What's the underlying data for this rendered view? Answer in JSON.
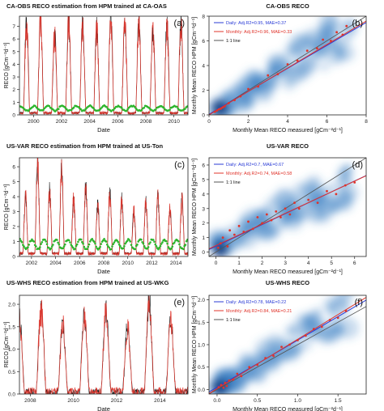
{
  "colors": {
    "measured": "#1a1a1a",
    "model": "#e0342b",
    "green": "#2db52d",
    "daily_line": "#2a3bd6",
    "monthly_line": "#e0342b",
    "one_to_one": "#555555",
    "density": "#3a7cc2"
  },
  "panels": [
    {
      "title": "CA-OBS RECO estimation from HPM trained at CA-OAS",
      "letter": "(a)",
      "xlabel": "Date",
      "ylabel": "RECO",
      "yunit": "[gCm⁻²d⁻¹]",
      "xticks": [
        "2000",
        "2002",
        "2004",
        "2006",
        "2008",
        "2010"
      ],
      "yticks": [
        "0",
        "1",
        "2",
        "3",
        "4",
        "5",
        "6",
        "7"
      ],
      "chart_data": {
        "type": "line",
        "x": [
          1999.0,
          2011.0
        ],
        "xlim": [
          1999.0,
          2011.0
        ],
        "ylim": [
          0,
          7.8
        ],
        "seasonal": {
          "start_year": 1999,
          "end_year": 2011,
          "peaks": [
            7.2,
            7.4,
            6.2,
            7.4,
            7.0,
            6.6,
            7.6,
            7.2,
            7.2,
            6.4,
            6.8,
            7.0
          ],
          "base": 0.15,
          "green_peak": 1.1
        },
        "series": []
      }
    },
    {
      "title": "CA-OBS RECO",
      "letter": "(b)",
      "xlabel": "Monthly Mean RECO measured",
      "ylabel": "Monthly Mean RECO HPM",
      "unit": "[gCm⁻²d⁻¹]",
      "xticks": [
        "0",
        "2",
        "4",
        "6",
        "8"
      ],
      "yticks": [
        "0",
        "2",
        "4",
        "6",
        "8"
      ],
      "legend": [
        "Daily: Adj.R2=0.95, MAE=0.37",
        "Monthly: Adj.R2=0.96, MAE=0.33",
        "1:1 line"
      ],
      "chart_data": {
        "type": "scatter",
        "xlim": [
          0,
          8
        ],
        "ylim": [
          0,
          8
        ],
        "daily_fit": [
          0.05,
          0.93
        ],
        "monthly_fit": [
          0.0,
          0.95
        ],
        "points": [
          [
            0.3,
            0.25
          ],
          [
            0.4,
            0.35
          ],
          [
            0.5,
            0.45
          ],
          [
            0.6,
            0.5
          ],
          [
            0.7,
            0.6
          ],
          [
            0.8,
            0.7
          ],
          [
            1.0,
            0.95
          ],
          [
            1.3,
            1.2
          ],
          [
            1.6,
            1.5
          ],
          [
            2.0,
            2.1
          ],
          [
            2.5,
            2.3
          ],
          [
            3.0,
            3.2
          ],
          [
            3.5,
            3.3
          ],
          [
            4.0,
            4.1
          ],
          [
            4.5,
            4.4
          ],
          [
            5.0,
            5.2
          ],
          [
            5.5,
            5.4
          ],
          [
            5.8,
            6.1
          ],
          [
            6.2,
            6.0
          ],
          [
            6.5,
            6.7
          ],
          [
            6.8,
            6.5
          ],
          [
            7.0,
            7.2
          ]
        ]
      }
    },
    {
      "title": "US-VAR RECO estimation from HPM trained at US-Ton",
      "letter": "(c)",
      "xlabel": "Date",
      "ylabel": "RECO",
      "yunit": "[gCm⁻²d⁻¹]",
      "xticks": [
        "2002",
        "2004",
        "2006",
        "2008",
        "2010",
        "2012",
        "2014"
      ],
      "yticks": [
        "0",
        "1",
        "2",
        "3",
        "4",
        "5",
        "6"
      ],
      "chart_data": {
        "type": "line",
        "xlim": [
          2001.0,
          2015.0
        ],
        "ylim": [
          0,
          6.6
        ],
        "seasonal": {
          "start_year": 2001,
          "end_year": 2015,
          "peaks": [
            3.8,
            6.2,
            4.2,
            5.8,
            3.6,
            4.4,
            3.2,
            4.0,
            3.6,
            2.8,
            3.4,
            3.8,
            3.0,
            3.6
          ],
          "base": 0.2,
          "green_peak": 1.8
        },
        "series": []
      }
    },
    {
      "title": "US-VAR RECO",
      "letter": "(d)",
      "xlabel": "Monthly Mean RECO measured",
      "ylabel": "Monthly Mean RECO HPM",
      "unit": "[gCm⁻²d⁻¹]",
      "xticks": [
        "0",
        "1",
        "2",
        "3",
        "4",
        "5",
        "6"
      ],
      "yticks": [
        "0",
        "1",
        "2",
        "3",
        "4",
        "5",
        "6"
      ],
      "legend": [
        "Daily: Adj.R2=0.7, MAE=0.67",
        "Monthly: Adj.R2=0.74, MAE=0.58",
        "1:1 line"
      ],
      "chart_data": {
        "type": "scatter",
        "xlim": [
          -0.3,
          6.5
        ],
        "ylim": [
          -0.3,
          6.5
        ],
        "daily_fit": [
          0.4,
          0.75
        ],
        "monthly_fit": [
          0.45,
          0.74
        ],
        "points": [
          [
            0.1,
            0.3
          ],
          [
            0.2,
            0.6
          ],
          [
            0.3,
            1.0
          ],
          [
            0.5,
            0.4
          ],
          [
            0.6,
            1.5
          ],
          [
            0.8,
            1.2
          ],
          [
            1.0,
            1.8
          ],
          [
            1.2,
            1.4
          ],
          [
            1.4,
            2.1
          ],
          [
            1.6,
            1.6
          ],
          [
            1.8,
            2.4
          ],
          [
            2.0,
            2.0
          ],
          [
            2.2,
            2.6
          ],
          [
            2.4,
            2.2
          ],
          [
            2.6,
            2.8
          ],
          [
            2.8,
            2.4
          ],
          [
            3.0,
            3.0
          ],
          [
            3.2,
            2.6
          ],
          [
            3.4,
            3.4
          ],
          [
            3.6,
            3.0
          ],
          [
            4.0,
            3.6
          ],
          [
            4.4,
            3.4
          ],
          [
            4.8,
            4.2
          ],
          [
            5.2,
            4.0
          ],
          [
            5.6,
            4.6
          ],
          [
            6.0,
            4.8
          ]
        ]
      }
    },
    {
      "title": "US-WHS RECO estimation from HPM trained at US-WKG",
      "letter": "(e)",
      "xlabel": "Date",
      "ylabel": "RECO",
      "yunit": "[gCm⁻²d⁻¹]",
      "xticks": [
        "2008",
        "2010",
        "2012",
        "2014"
      ],
      "yticks": [
        "0.0",
        "0.5",
        "1.0",
        "1.5",
        "2.0"
      ],
      "chart_data": {
        "type": "line",
        "xlim": [
          2007.5,
          2015.3
        ],
        "ylim": [
          0,
          2.2
        ],
        "seasonal": {
          "start_year": 2007,
          "end_year": 2015,
          "peaks": [
            1.6,
            1.9,
            1.5,
            1.7,
            1.8,
            1.4,
            2.0,
            1.6,
            1.7
          ],
          "base": 0.05,
          "green_peak": 0.0
        },
        "series": []
      }
    },
    {
      "title": "US-WHS RECO",
      "letter": "(f)",
      "xlabel": "Monthly Mean RECO measured",
      "ylabel": "Monthly Mean RECO HPM",
      "unit": "[gCm⁻²d⁻¹]",
      "xticks": [
        "0.0",
        "0.5",
        "1.0",
        "1.5"
      ],
      "yticks": [
        "0.0",
        "0.5",
        "1.0",
        "1.5",
        "2.0"
      ],
      "legend": [
        "Daily: Adj.R2=0.78, MAE=0.22",
        "Monthly: Adj.R2=0.84, MAE=0.21",
        "1:1 line"
      ],
      "chart_data": {
        "type": "scatter",
        "xlim": [
          -0.1,
          1.85
        ],
        "ylim": [
          -0.1,
          2.1
        ],
        "daily_fit": [
          0.05,
          1.05
        ],
        "monthly_fit": [
          0.02,
          1.1
        ],
        "points": [
          [
            0.02,
            0.05
          ],
          [
            0.05,
            0.1
          ],
          [
            0.08,
            0.04
          ],
          [
            0.1,
            0.15
          ],
          [
            0.12,
            0.08
          ],
          [
            0.15,
            0.2
          ],
          [
            0.2,
            0.22
          ],
          [
            0.25,
            0.35
          ],
          [
            0.3,
            0.3
          ],
          [
            0.4,
            0.5
          ],
          [
            0.5,
            0.55
          ],
          [
            0.6,
            0.7
          ],
          [
            0.7,
            0.75
          ],
          [
            0.8,
            0.95
          ],
          [
            0.9,
            1.0
          ],
          [
            1.0,
            1.1
          ],
          [
            1.1,
            1.2
          ],
          [
            1.2,
            1.35
          ],
          [
            1.3,
            1.4
          ],
          [
            1.4,
            1.55
          ],
          [
            1.5,
            1.6
          ],
          [
            1.6,
            1.75
          ]
        ]
      }
    }
  ]
}
